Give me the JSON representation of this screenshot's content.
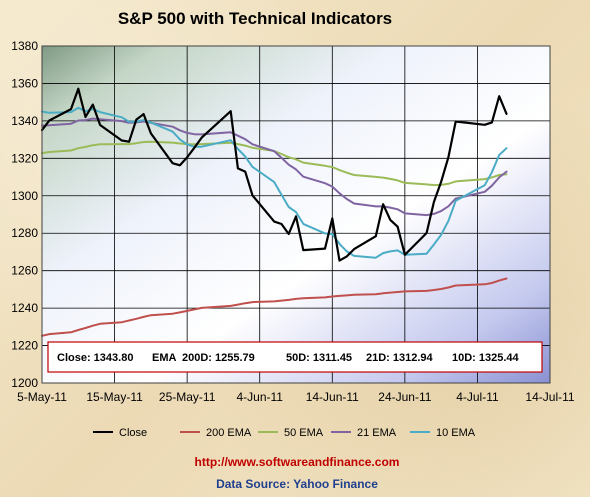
{
  "chart_data": {
    "type": "line",
    "title": "S&P 500 with Technical Indicators",
    "ylim": [
      1200,
      1380
    ],
    "yticks": [
      1200,
      1220,
      1240,
      1260,
      1280,
      1300,
      1320,
      1340,
      1360,
      1380
    ],
    "xlim": [
      "2011-05-05",
      "2011-07-14"
    ],
    "xticks": [
      {
        "date": "2011-05-05",
        "label": "5-May-11"
      },
      {
        "date": "2011-05-15",
        "label": "15-May-11"
      },
      {
        "date": "2011-05-25",
        "label": "25-May-11"
      },
      {
        "date": "2011-06-04",
        "label": "4-Jun-11"
      },
      {
        "date": "2011-06-14",
        "label": "14-Jun-11"
      },
      {
        "date": "2011-06-24",
        "label": "24-Jun-11"
      },
      {
        "date": "2011-07-04",
        "label": "4-Jul-11"
      },
      {
        "date": "2011-07-14",
        "label": "14-Jul-11"
      }
    ],
    "grid": true,
    "legend_position": "bottom",
    "x": [
      "2011-05-05",
      "2011-05-06",
      "2011-05-09",
      "2011-05-10",
      "2011-05-11",
      "2011-05-12",
      "2011-05-13",
      "2011-05-16",
      "2011-05-17",
      "2011-05-18",
      "2011-05-19",
      "2011-05-20",
      "2011-05-23",
      "2011-05-24",
      "2011-05-25",
      "2011-05-26",
      "2011-05-27",
      "2011-05-31",
      "2011-06-01",
      "2011-06-02",
      "2011-06-03",
      "2011-06-06",
      "2011-06-07",
      "2011-06-08",
      "2011-06-09",
      "2011-06-10",
      "2011-06-13",
      "2011-06-14",
      "2011-06-15",
      "2011-06-16",
      "2011-06-17",
      "2011-06-20",
      "2011-06-21",
      "2011-06-22",
      "2011-06-23",
      "2011-06-24",
      "2011-06-27",
      "2011-06-28",
      "2011-06-29",
      "2011-06-30",
      "2011-07-01",
      "2011-07-05",
      "2011-07-06",
      "2011-07-07",
      "2011-07-08"
    ],
    "series": [
      {
        "name": "Close",
        "color": "#000000",
        "values": [
          1335.1,
          1340.2,
          1346.3,
          1357.2,
          1342.1,
          1348.7,
          1337.8,
          1329.5,
          1328.9,
          1340.7,
          1343.6,
          1333.3,
          1317.4,
          1316.3,
          1320.5,
          1325.7,
          1331.1,
          1345.2,
          1314.6,
          1312.9,
          1300.2,
          1286.2,
          1284.9,
          1279.6,
          1289.0,
          1271.0,
          1271.8,
          1287.9,
          1265.4,
          1267.6,
          1271.5,
          1278.4,
          1295.5,
          1287.1,
          1283.5,
          1268.5,
          1280.1,
          1296.7,
          1307.4,
          1320.6,
          1339.7,
          1337.9,
          1339.2,
          1353.2,
          1343.8
        ]
      },
      {
        "name": "200 EMA",
        "color": "#c0504d",
        "values": [
          1225.2,
          1226.1,
          1227.1,
          1228.3,
          1229.4,
          1230.6,
          1231.6,
          1232.5,
          1233.4,
          1234.3,
          1235.3,
          1236.2,
          1237.0,
          1237.7,
          1238.5,
          1239.3,
          1240.1,
          1241.2,
          1241.9,
          1242.6,
          1243.2,
          1243.6,
          1244.0,
          1244.4,
          1244.9,
          1245.3,
          1245.7,
          1246.2,
          1246.5,
          1246.8,
          1247.1,
          1247.4,
          1247.9,
          1248.3,
          1248.6,
          1248.9,
          1249.2,
          1249.7,
          1250.2,
          1251.0,
          1252.1,
          1252.7,
          1253.4,
          1254.7,
          1255.8
        ]
      },
      {
        "name": "50 EMA",
        "color": "#9bbb59",
        "values": [
          1322.8,
          1323.4,
          1324.2,
          1325.4,
          1326.1,
          1327.0,
          1327.5,
          1327.6,
          1327.6,
          1328.1,
          1328.7,
          1328.9,
          1328.4,
          1327.9,
          1327.6,
          1327.5,
          1327.6,
          1328.3,
          1327.6,
          1326.8,
          1325.6,
          1323.9,
          1322.3,
          1320.6,
          1319.5,
          1317.7,
          1316.0,
          1315.3,
          1313.7,
          1312.3,
          1311.1,
          1310.1,
          1309.7,
          1309.0,
          1308.2,
          1306.9,
          1306.1,
          1305.7,
          1305.8,
          1306.4,
          1307.7,
          1308.9,
          1309.8,
          1311.1,
          1311.5
        ]
      },
      {
        "name": "21 EMA",
        "color": "#8064a2",
        "values": [
          1337.5,
          1337.7,
          1338.5,
          1340.2,
          1340.4,
          1341.2,
          1340.9,
          1339.9,
          1339.0,
          1339.2,
          1339.7,
          1339.0,
          1336.9,
          1335.0,
          1333.6,
          1332.9,
          1332.8,
          1333.9,
          1332.1,
          1330.2,
          1327.5,
          1323.8,
          1320.3,
          1316.6,
          1314.1,
          1310.2,
          1306.7,
          1304.9,
          1301.3,
          1298.3,
          1295.9,
          1294.3,
          1294.4,
          1293.7,
          1292.8,
          1290.6,
          1289.7,
          1290.3,
          1291.8,
          1294.4,
          1298.5,
          1302.1,
          1305.4,
          1309.8,
          1312.9
        ]
      },
      {
        "name": "10 EMA",
        "color": "#4bacc6",
        "values": [
          1345.0,
          1344.3,
          1344.7,
          1347.0,
          1345.2,
          1346.3,
          1344.7,
          1341.9,
          1339.5,
          1339.7,
          1340.4,
          1339.1,
          1334.3,
          1330.1,
          1327.4,
          1326.2,
          1326.2,
          1329.7,
          1325.0,
          1321.0,
          1315.4,
          1307.3,
          1300.5,
          1294.0,
          1291.3,
          1285.0,
          1279.9,
          1279.6,
          1274.3,
          1270.3,
          1267.9,
          1266.9,
          1269.4,
          1270.3,
          1270.8,
          1268.5,
          1269.0,
          1274.0,
          1279.1,
          1286.6,
          1297.3,
          1305.6,
          1312.6,
          1321.8,
          1325.4
        ]
      }
    ],
    "info_box": {
      "close_label": "Close: 1343.80",
      "ema_label": "EMA",
      "ema200_label": "200D: 1255.79",
      "ema50_label": "50D: 1311.45",
      "ema21_label": "21D: 1312.94",
      "ema10_label": "10D: 1325.44"
    }
  },
  "footer": {
    "url": "http://www.softwareandfinance.com",
    "source": "Data Source: Yahoo Finance"
  }
}
